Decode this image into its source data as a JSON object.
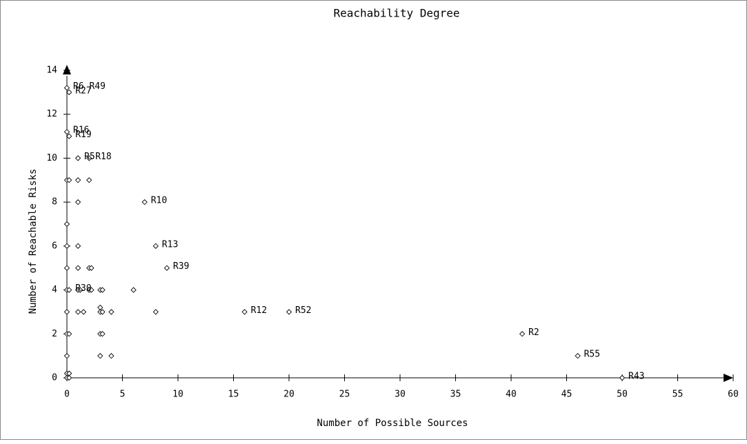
{
  "chart_data": {
    "type": "scatter",
    "title": "Reachability Degree",
    "xlabel": "Number of Possible Sources",
    "ylabel": "Number of Reachable Risks",
    "xlim": [
      0,
      60
    ],
    "ylim": [
      0,
      14
    ],
    "xticks": [
      0,
      5,
      10,
      15,
      20,
      25,
      30,
      35,
      40,
      45,
      50,
      55,
      60
    ],
    "yticks": [
      0,
      2,
      4,
      6,
      8,
      10,
      12,
      14
    ],
    "grid": false,
    "legend": "none",
    "marker": "diamond-open",
    "points": [
      {
        "x": 0,
        "y": 13.2
      },
      {
        "x": 0.2,
        "y": 13
      },
      {
        "x": 0,
        "y": 11.2
      },
      {
        "x": 0.2,
        "y": 11
      },
      {
        "x": 1,
        "y": 10
      },
      {
        "x": 2,
        "y": 10
      },
      {
        "x": 0,
        "y": 9
      },
      {
        "x": 0.2,
        "y": 9
      },
      {
        "x": 1,
        "y": 9
      },
      {
        "x": 2,
        "y": 9
      },
      {
        "x": 1,
        "y": 8
      },
      {
        "x": 7,
        "y": 8
      },
      {
        "x": 0,
        "y": 7
      },
      {
        "x": 0,
        "y": 6
      },
      {
        "x": 1,
        "y": 6
      },
      {
        "x": 8,
        "y": 6
      },
      {
        "x": 0,
        "y": 5
      },
      {
        "x": 1,
        "y": 5
      },
      {
        "x": 2,
        "y": 5
      },
      {
        "x": 2.2,
        "y": 5
      },
      {
        "x": 9,
        "y": 5
      },
      {
        "x": 0,
        "y": 4
      },
      {
        "x": 0.2,
        "y": 4
      },
      {
        "x": 1,
        "y": 4
      },
      {
        "x": 1.2,
        "y": 4
      },
      {
        "x": 2,
        "y": 4
      },
      {
        "x": 2.2,
        "y": 4
      },
      {
        "x": 3,
        "y": 4
      },
      {
        "x": 3.2,
        "y": 4
      },
      {
        "x": 6,
        "y": 4
      },
      {
        "x": 0,
        "y": 3
      },
      {
        "x": 1,
        "y": 3
      },
      {
        "x": 1.5,
        "y": 3
      },
      {
        "x": 3,
        "y": 3.2
      },
      {
        "x": 3,
        "y": 3
      },
      {
        "x": 3.2,
        "y": 3
      },
      {
        "x": 4,
        "y": 3
      },
      {
        "x": 8,
        "y": 3
      },
      {
        "x": 16,
        "y": 3
      },
      {
        "x": 20,
        "y": 3
      },
      {
        "x": 0,
        "y": 2
      },
      {
        "x": 0.2,
        "y": 2
      },
      {
        "x": 3,
        "y": 2
      },
      {
        "x": 3.2,
        "y": 2
      },
      {
        "x": 41,
        "y": 2
      },
      {
        "x": 0,
        "y": 1
      },
      {
        "x": 3,
        "y": 1
      },
      {
        "x": 4,
        "y": 1
      },
      {
        "x": 46,
        "y": 1
      },
      {
        "x": 0,
        "y": 0.2
      },
      {
        "x": 0.2,
        "y": 0.2
      },
      {
        "x": 0,
        "y": 0
      },
      {
        "x": 0.2,
        "y": 0
      },
      {
        "x": 50,
        "y": 0
      }
    ],
    "annotations": [
      {
        "text": "R6 R49",
        "x": 0,
        "y": 13.2
      },
      {
        "text": "R27",
        "x": 0.2,
        "y": 13
      },
      {
        "text": "R16",
        "x": 0,
        "y": 11.2
      },
      {
        "text": "R19",
        "x": 0.2,
        "y": 11
      },
      {
        "text": "R18",
        "x": 2,
        "y": 10
      },
      {
        "text": "R5",
        "x": 1,
        "y": 10
      },
      {
        "text": "R10",
        "x": 7,
        "y": 8
      },
      {
        "text": "R13",
        "x": 8,
        "y": 6
      },
      {
        "text": "R39",
        "x": 9,
        "y": 5
      },
      {
        "text": "R30",
        "x": 0.2,
        "y": 4
      },
      {
        "text": "R12",
        "x": 16,
        "y": 3
      },
      {
        "text": "R52",
        "x": 20,
        "y": 3
      },
      {
        "text": "R2",
        "x": 41,
        "y": 2
      },
      {
        "text": "R55",
        "x": 46,
        "y": 1
      },
      {
        "text": "R43",
        "x": 50,
        "y": 0
      }
    ]
  }
}
